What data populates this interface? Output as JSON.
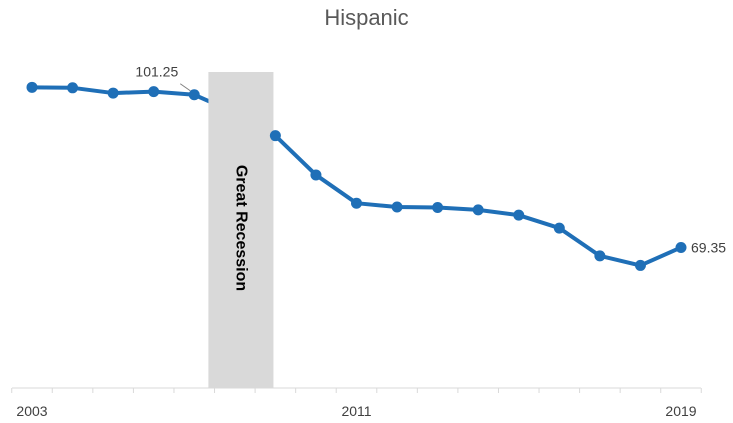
{
  "chart_data": {
    "type": "line",
    "title": "Hispanic",
    "xlabel": "",
    "ylabel": "",
    "x": [
      2003,
      2004,
      2005,
      2006,
      2007,
      2008,
      2009,
      2010,
      2011,
      2012,
      2013,
      2014,
      2015,
      2016,
      2017,
      2018,
      2019
    ],
    "series": [
      {
        "name": "",
        "values": [
          102.8,
          102.7,
          101.6,
          101.9,
          101.25,
          97.5,
          92.7,
          84.5,
          78.6,
          77.8,
          77.7,
          77.2,
          76.1,
          73.4,
          67.6,
          65.6,
          69.35
        ],
        "color": "#1f6fb7"
      }
    ],
    "x_tick_labels": [
      "2003",
      "2011",
      "2019"
    ],
    "data_labels": [
      {
        "x": 2007,
        "text": "101.25"
      },
      {
        "x": 2019,
        "text": "69.35"
      }
    ],
    "shaded_region": {
      "label": "Great Recession",
      "x_start": 2007.35,
      "x_end": 2008.95,
      "color": "#d9d9d9"
    },
    "ylim": [
      40,
      106
    ],
    "grid": false
  }
}
